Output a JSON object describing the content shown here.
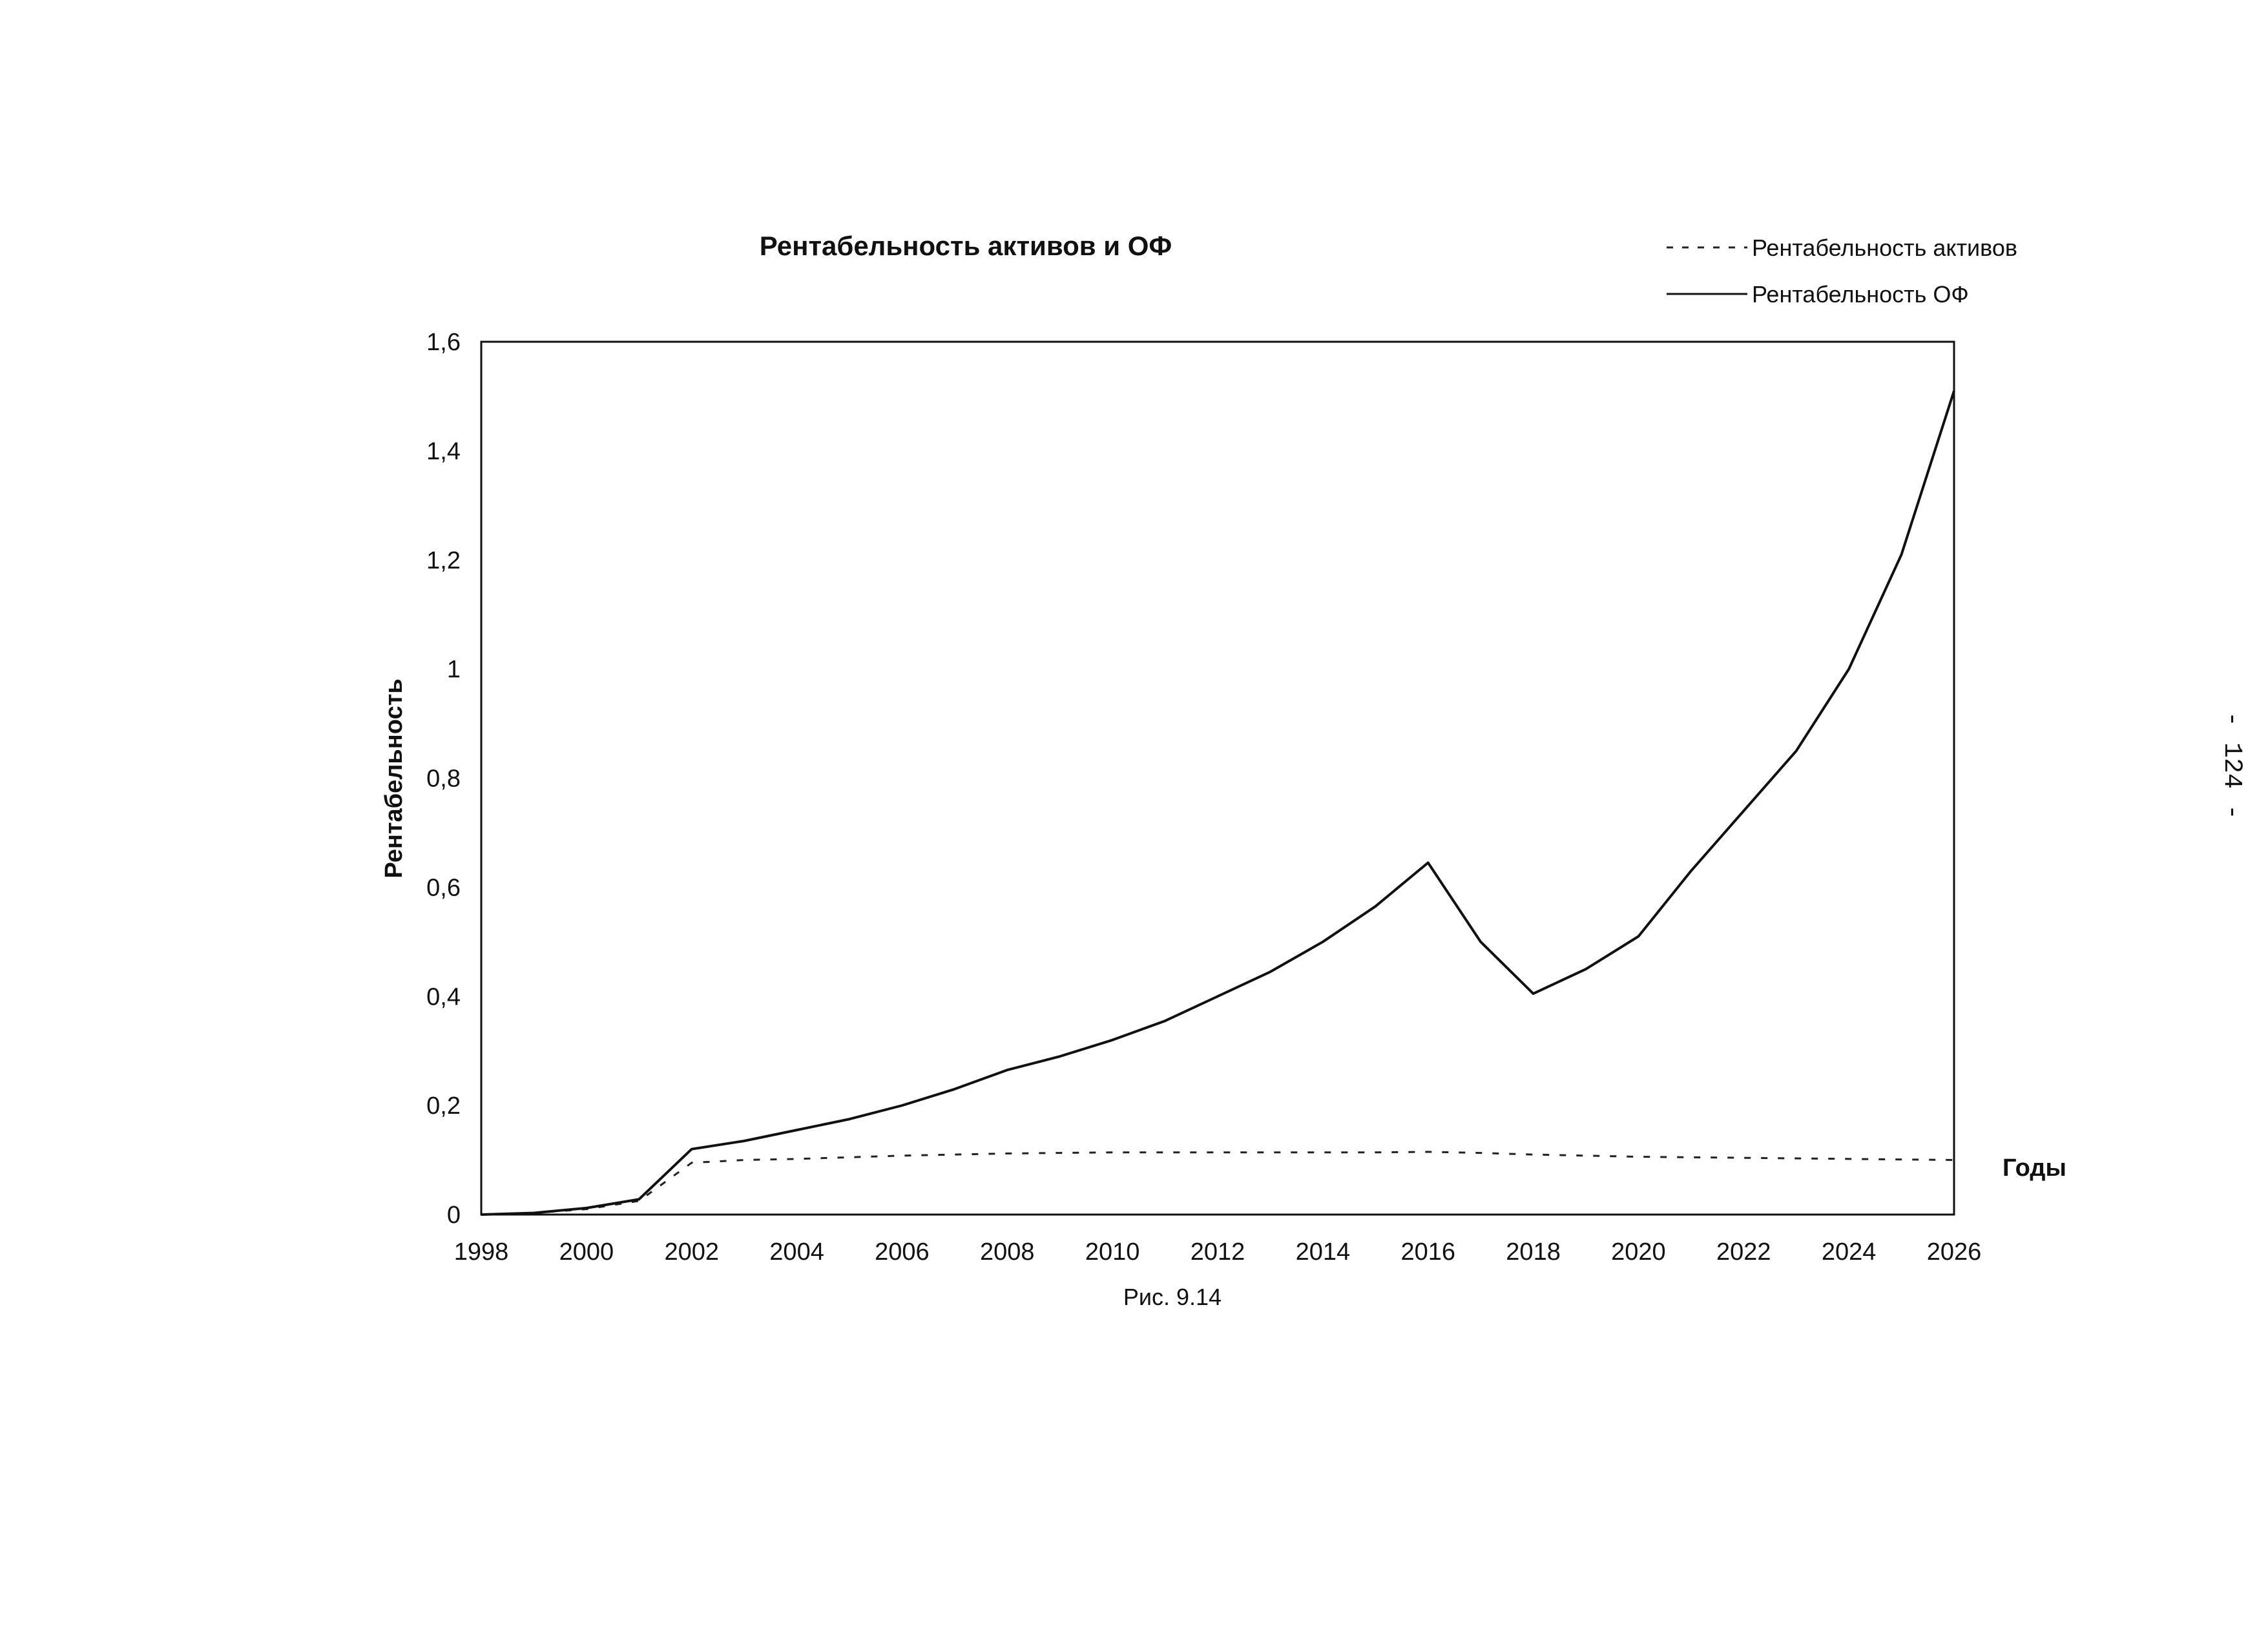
{
  "chart_data": {
    "type": "line",
    "title": "Рентабельность активов и ОФ",
    "xlabel": "Годы",
    "ylabel": "Рентабельность",
    "xlim": [
      1998,
      2026
    ],
    "ylim": [
      0,
      1.6
    ],
    "x_ticks": [
      "1998",
      "2000",
      "2002",
      "2004",
      "2006",
      "2008",
      "2010",
      "2012",
      "2014",
      "2016",
      "2018",
      "2020",
      "2022",
      "2024",
      "2026"
    ],
    "y_ticks": [
      "0",
      "0,2",
      "0,4",
      "0,6",
      "0,8",
      "1",
      "1,2",
      "1,4",
      "1,6"
    ],
    "x_tick_values": [
      1998,
      2000,
      2002,
      2004,
      2006,
      2008,
      2010,
      2012,
      2014,
      2016,
      2018,
      2020,
      2022,
      2024,
      2026
    ],
    "y_tick_values": [
      0,
      0.2,
      0.4,
      0.6,
      0.8,
      1,
      1.2,
      1.4,
      1.6
    ],
    "legend_placement": "top-right",
    "grid": false,
    "x": [
      1998,
      1999,
      2000,
      2001,
      2002,
      2003,
      2004,
      2005,
      2006,
      2007,
      2008,
      2009,
      2010,
      2011,
      2012,
      2013,
      2014,
      2015,
      2016,
      2017,
      2018,
      2019,
      2020,
      2021,
      2022,
      2023,
      2024,
      2025,
      2026
    ],
    "series": [
      {
        "name": "Рентабельность активов",
        "style": "dashed",
        "color": "#222222",
        "values": [
          0,
          0.003,
          0.01,
          0.025,
          0.095,
          0.1,
          0.102,
          0.105,
          0.108,
          0.11,
          0.112,
          0.113,
          0.114,
          0.114,
          0.114,
          0.114,
          0.114,
          0.114,
          0.115,
          0.113,
          0.11,
          0.108,
          0.106,
          0.105,
          0.104,
          0.103,
          0.102,
          0.101,
          0.1
        ]
      },
      {
        "name": "Рентабельность ОФ",
        "style": "solid",
        "color": "#111111",
        "values": [
          0,
          0.003,
          0.012,
          0.028,
          0.12,
          0.135,
          0.155,
          0.175,
          0.2,
          0.23,
          0.265,
          0.29,
          0.32,
          0.355,
          0.4,
          0.445,
          0.5,
          0.565,
          0.645,
          0.5,
          0.405,
          0.45,
          0.51,
          0.63,
          0.74,
          0.85,
          1.0,
          1.21,
          1.51
        ]
      }
    ],
    "caption": "Рис. 9.14",
    "page_number": "- 124 -"
  }
}
